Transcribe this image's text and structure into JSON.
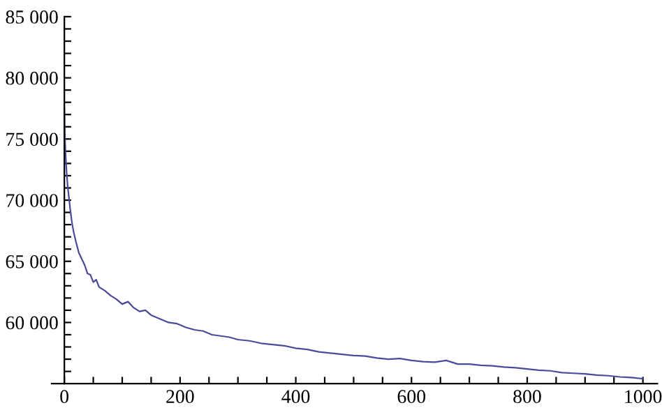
{
  "chart_data": {
    "type": "line",
    "xlim": [
      -22,
      1025
    ],
    "ylim": [
      55000,
      85000
    ],
    "xticks": [
      0,
      {
        "value": 50,
        "label": null
      },
      {
        "value": 100,
        "label": null
      },
      {
        "value": 150,
        "label": null
      },
      200,
      {
        "value": 250,
        "label": null
      },
      {
        "value": 300,
        "label": null
      },
      {
        "value": 350,
        "label": null
      },
      400,
      {
        "value": 450,
        "label": null
      },
      {
        "value": 500,
        "label": null
      },
      {
        "value": 550,
        "label": null
      },
      600,
      {
        "value": 650,
        "label": null
      },
      {
        "value": 700,
        "label": null
      },
      {
        "value": 750,
        "label": null
      },
      800,
      {
        "value": 850,
        "label": null
      },
      {
        "value": 900,
        "label": null
      },
      {
        "value": 950,
        "label": null
      },
      1000
    ],
    "yticks": [
      {
        "value": 56000,
        "label": null
      },
      {
        "value": 57000,
        "label": null
      },
      {
        "value": 58000,
        "label": null
      },
      {
        "value": 59000,
        "label": null
      },
      {
        "value": 60000,
        "label": "60 000"
      },
      {
        "value": 61000,
        "label": null
      },
      {
        "value": 62000,
        "label": null
      },
      {
        "value": 63000,
        "label": null
      },
      {
        "value": 64000,
        "label": null
      },
      {
        "value": 65000,
        "label": "65 000"
      },
      {
        "value": 66000,
        "label": null
      },
      {
        "value": 67000,
        "label": null
      },
      {
        "value": 68000,
        "label": null
      },
      {
        "value": 69000,
        "label": null
      },
      {
        "value": 70000,
        "label": "70 000"
      },
      {
        "value": 71000,
        "label": null
      },
      {
        "value": 72000,
        "label": null
      },
      {
        "value": 73000,
        "label": null
      },
      {
        "value": 74000,
        "label": null
      },
      {
        "value": 75000,
        "label": "75 000"
      },
      {
        "value": 76000,
        "label": null
      },
      {
        "value": 77000,
        "label": null
      },
      {
        "value": 78000,
        "label": null
      },
      {
        "value": 79000,
        "label": null
      },
      {
        "value": 80000,
        "label": "80 000"
      },
      {
        "value": 81000,
        "label": null
      },
      {
        "value": 82000,
        "label": null
      },
      {
        "value": 83000,
        "label": null
      },
      {
        "value": 84000,
        "label": null
      },
      {
        "value": 85000,
        "label": "85 000"
      }
    ],
    "grid": false,
    "marker": "none",
    "line_style": "solid",
    "series": [
      {
        "color": "#4a4a9a",
        "x": [
          0,
          1,
          2,
          4,
          6,
          8,
          10,
          13,
          16,
          20,
          25,
          30,
          35,
          40,
          45,
          50,
          55,
          60,
          70,
          80,
          90,
          100,
          110,
          120,
          130,
          140,
          150,
          165,
          180,
          195,
          210,
          225,
          240,
          255,
          270,
          285,
          300,
          320,
          340,
          360,
          380,
          400,
          420,
          440,
          460,
          480,
          500,
          520,
          540,
          560,
          580,
          600,
          620,
          640,
          660,
          680,
          700,
          720,
          740,
          760,
          780,
          800,
          820,
          840,
          860,
          880,
          900,
          920,
          940,
          960,
          980,
          1000
        ],
        "values": [
          77500,
          75000,
          73800,
          72200,
          71000,
          70200,
          69300,
          68200,
          67400,
          66600,
          65700,
          65200,
          64700,
          64000,
          63900,
          63300,
          63500,
          62900,
          62600,
          62200,
          61900,
          61500,
          61700,
          61200,
          60900,
          61000,
          60600,
          60300,
          60000,
          59900,
          59600,
          59400,
          59300,
          59000,
          58900,
          58800,
          58600,
          58500,
          58300,
          58200,
          58100,
          57900,
          57800,
          57600,
          57500,
          57400,
          57300,
          57250,
          57100,
          57000,
          57050,
          56900,
          56800,
          56750,
          56900,
          56600,
          56600,
          56500,
          56450,
          56350,
          56300,
          56200,
          56100,
          56050,
          55900,
          55850,
          55800,
          55700,
          55650,
          55550,
          55500,
          55400
        ]
      }
    ]
  }
}
